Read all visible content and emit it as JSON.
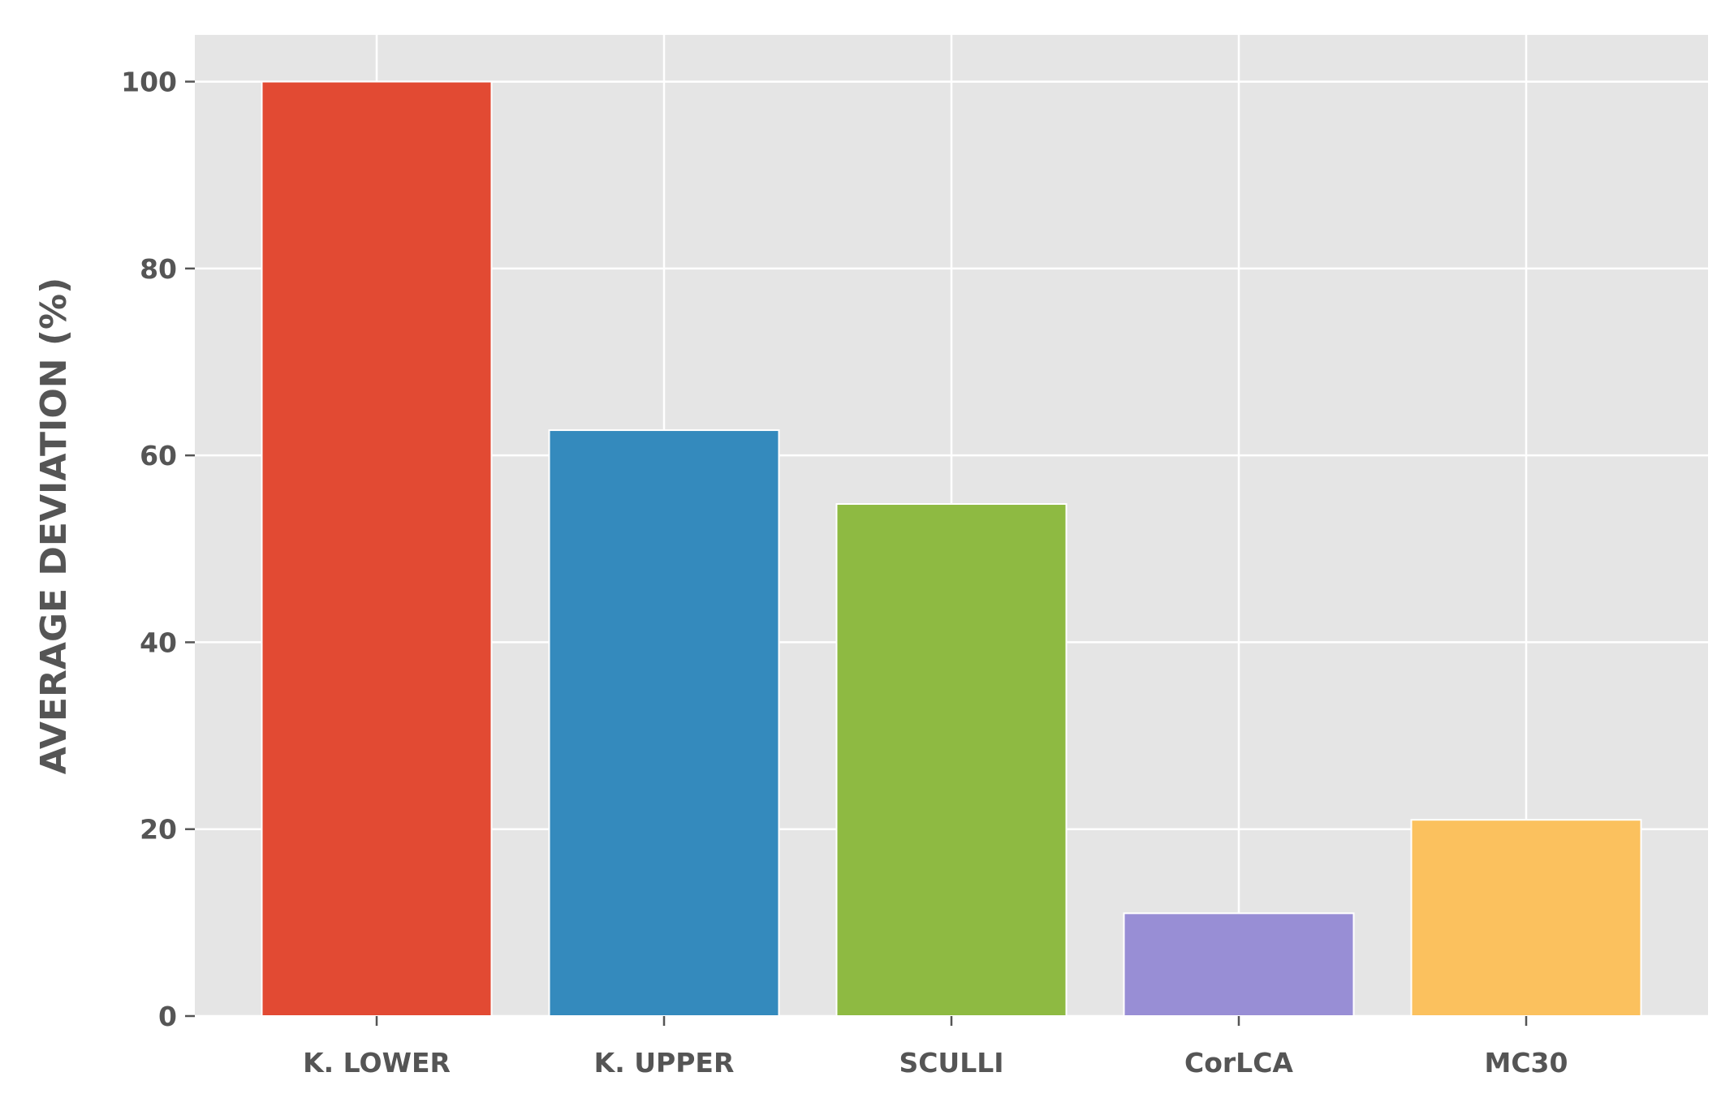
{
  "chart_data": {
    "type": "bar",
    "categories": [
      "K. LOWER",
      "K. UPPER",
      "SCULLI",
      "CorLCA",
      "MC30"
    ],
    "values": [
      100,
      62.7,
      54.8,
      11,
      21
    ],
    "colors": [
      "#E24A33",
      "#348ABD",
      "#8EBA42",
      "#988ED5",
      "#FBC15E"
    ],
    "title": "",
    "xlabel": "",
    "ylabel": "AVERAGE DEVIATION (%)",
    "ylim": [
      0,
      105
    ],
    "yticks": [
      "0",
      "20",
      "40",
      "60",
      "80",
      "100"
    ],
    "grid": true,
    "background": "#E5E5E5",
    "grid_color": "#FFFFFF",
    "text_color": "#555555"
  }
}
